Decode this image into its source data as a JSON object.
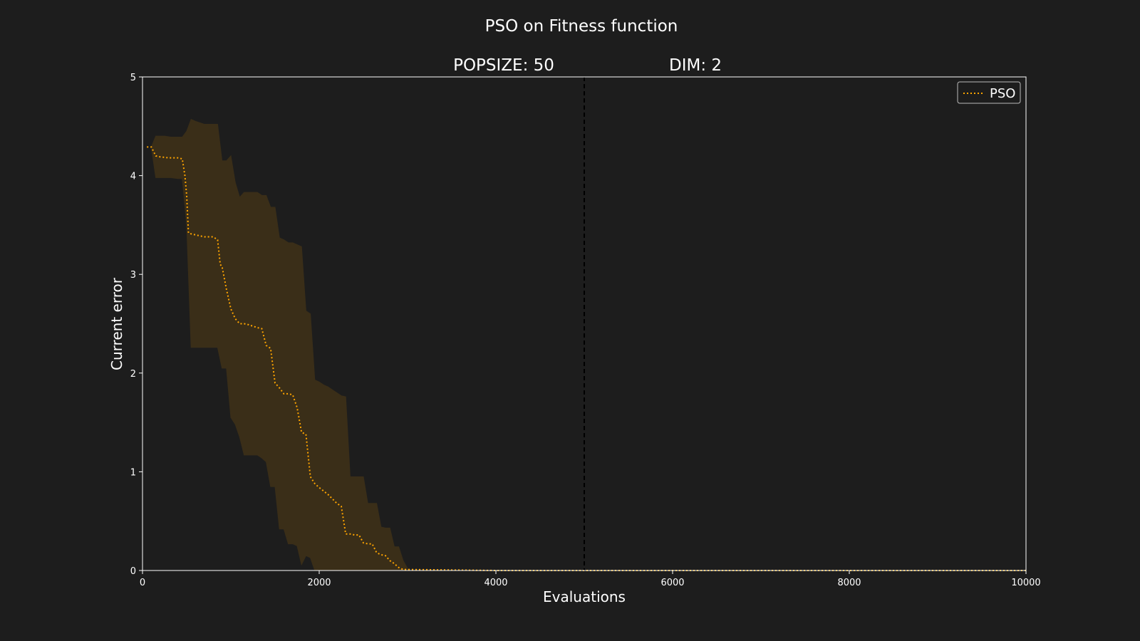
{
  "chart_data": {
    "type": "line",
    "title": "PSO on Fitness function",
    "subtitle_left": "POPSIZE: 50",
    "subtitle_right": "DIM: 2",
    "xlabel": "Evaluations",
    "ylabel": "Current error",
    "xlim": [
      0,
      10000
    ],
    "ylim": [
      0,
      5
    ],
    "xticks": [
      0,
      2000,
      4000,
      6000,
      8000,
      10000
    ],
    "yticks": [
      0,
      1,
      2,
      3,
      4,
      5
    ],
    "vline_x": 5000,
    "legend_position": "top-right",
    "grid": false,
    "colors": {
      "background": "#1d1d1d",
      "axes": "#ffffff",
      "series": "#ffa500",
      "band": "#3a2e18",
      "vline": "#000000"
    },
    "series": [
      {
        "name": "PSO",
        "style": "dotted",
        "x": [
          50,
          100,
          150,
          200,
          300,
          400,
          450,
          480,
          500,
          520,
          550,
          600,
          700,
          800,
          850,
          880,
          900,
          950,
          1000,
          1050,
          1100,
          1150,
          1200,
          1300,
          1350,
          1400,
          1450,
          1500,
          1550,
          1600,
          1650,
          1700,
          1750,
          1800,
          1850,
          1900,
          1950,
          2000,
          2100,
          2200,
          2250,
          2300,
          2350,
          2400,
          2450,
          2500,
          2550,
          2600,
          2650,
          2700,
          2750,
          2800,
          2850,
          2900,
          2950,
          3000,
          4000,
          5000,
          6000,
          8000,
          10000
        ],
        "values": [
          4.29,
          4.29,
          4.2,
          4.19,
          4.18,
          4.18,
          4.17,
          4.0,
          3.8,
          3.42,
          3.41,
          3.4,
          3.38,
          3.38,
          3.35,
          3.1,
          3.08,
          2.85,
          2.65,
          2.55,
          2.5,
          2.5,
          2.49,
          2.46,
          2.45,
          2.28,
          2.25,
          1.9,
          1.85,
          1.79,
          1.79,
          1.78,
          1.65,
          1.4,
          1.38,
          0.95,
          0.88,
          0.84,
          0.77,
          0.68,
          0.65,
          0.37,
          0.37,
          0.36,
          0.36,
          0.28,
          0.27,
          0.27,
          0.18,
          0.16,
          0.15,
          0.1,
          0.07,
          0.03,
          0.01,
          0.01,
          0.0,
          0.0,
          0.0,
          0.0,
          0.0
        ],
        "band_x": [
          100,
          150,
          250,
          320,
          400,
          450,
          500,
          550,
          600,
          700,
          800,
          850,
          900,
          950,
          1000,
          1050,
          1100,
          1150,
          1200,
          1300,
          1350,
          1400,
          1450,
          1500,
          1550,
          1600,
          1650,
          1700,
          1750,
          1800,
          1850,
          1900,
          1950,
          2000,
          2050,
          2100,
          2150,
          2200,
          2250,
          2300,
          2350,
          2400,
          2450,
          2500,
          2550,
          2600,
          2650,
          2700,
          2750,
          2800,
          2850,
          2900,
          2950,
          3000
        ],
        "band_upper": [
          4.29,
          4.4,
          4.4,
          4.39,
          4.39,
          4.39,
          4.45,
          4.57,
          4.55,
          4.52,
          4.52,
          4.52,
          4.15,
          4.15,
          4.2,
          3.93,
          3.78,
          3.83,
          3.83,
          3.83,
          3.8,
          3.8,
          3.68,
          3.68,
          3.37,
          3.35,
          3.32,
          3.32,
          3.3,
          3.28,
          2.63,
          2.6,
          1.93,
          1.91,
          1.88,
          1.86,
          1.83,
          1.8,
          1.77,
          1.76,
          0.95,
          0.95,
          0.95,
          0.95,
          0.68,
          0.68,
          0.68,
          0.44,
          0.43,
          0.43,
          0.24,
          0.24,
          0.1,
          0.02
        ],
        "band_lower": [
          4.29,
          3.98,
          3.98,
          3.98,
          3.97,
          3.97,
          3.5,
          2.26,
          2.26,
          2.26,
          2.26,
          2.26,
          2.05,
          2.05,
          1.55,
          1.48,
          1.35,
          1.17,
          1.17,
          1.17,
          1.14,
          1.1,
          0.85,
          0.85,
          0.42,
          0.42,
          0.27,
          0.27,
          0.25,
          0.06,
          0.15,
          0.13,
          0.0,
          0.0,
          0.0,
          0.0,
          0.0,
          0.0,
          0.0,
          0.0,
          0.0,
          0.0,
          0.0,
          0.0,
          0.0,
          0.0,
          0.0,
          0.0,
          0.0,
          0.0,
          0.0,
          0.0,
          0.0,
          0.0
        ]
      }
    ]
  }
}
